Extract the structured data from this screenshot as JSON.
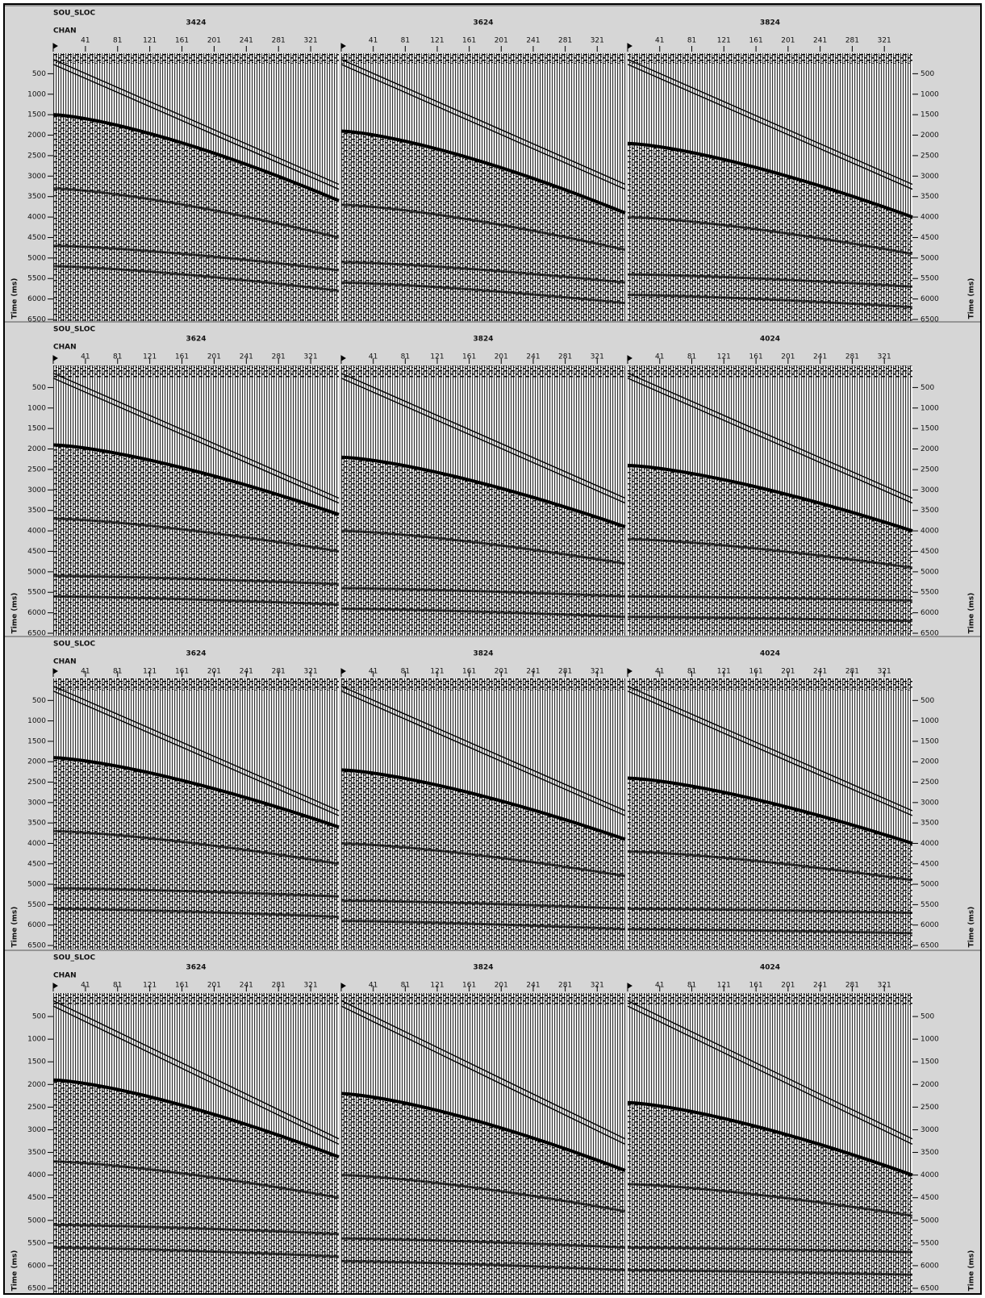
{
  "time_axis_label": "Time (ms)",
  "channel_ticks": [
    41,
    81,
    121,
    161,
    201,
    241,
    281,
    321
  ],
  "time_ticks": [
    500,
    1000,
    1500,
    2000,
    2500,
    3000,
    3500,
    4000,
    4500,
    5000,
    5500,
    6000,
    6500
  ],
  "rows": [
    {
      "key_label": "SOU_SLOC",
      "channel_label": "CHAN",
      "source_locations": [
        "3424",
        "3624",
        "3824"
      ]
    },
    {
      "key_label": "SOU_SLOC",
      "channel_label": "CHAN",
      "source_locations": [
        "3624",
        "3824",
        "4024"
      ]
    },
    {
      "key_label": "SOU_SLOC",
      "channel_label": "CHAN",
      "source_locations": [
        "3624",
        "3824",
        "4024"
      ]
    },
    {
      "key_label": "SOU_SLOC",
      "channel_label": "CHAN",
      "source_locations": [
        "3624",
        "3824",
        "4024"
      ]
    }
  ]
}
